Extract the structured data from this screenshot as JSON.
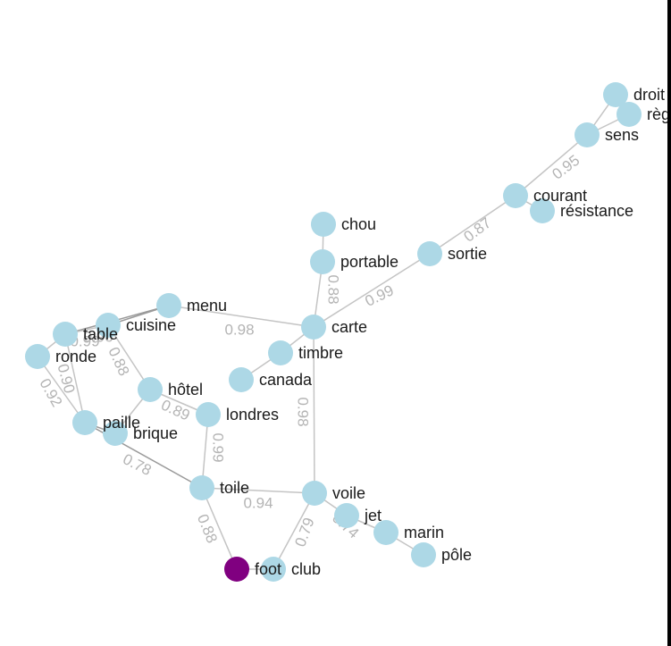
{
  "colors": {
    "node": "#add8e6",
    "selected": "#800080",
    "edge": "#c4c4c4",
    "weight": "#b4b4b4",
    "label": "#1a1a1a"
  },
  "nodes": [
    {
      "id": "droite",
      "label": "droit"
    },
    {
      "id": "regle",
      "label": "règ"
    },
    {
      "id": "sens",
      "label": "sens"
    },
    {
      "id": "courant",
      "label": "courant"
    },
    {
      "id": "resistance",
      "label": "résistance"
    },
    {
      "id": "sortie",
      "label": "sortie"
    },
    {
      "id": "chou",
      "label": "chou"
    },
    {
      "id": "portable",
      "label": "portable"
    },
    {
      "id": "carte",
      "label": "carte"
    },
    {
      "id": "menu",
      "label": "menu"
    },
    {
      "id": "cuisine",
      "label": "cuisine"
    },
    {
      "id": "table",
      "label": "table"
    },
    {
      "id": "ronde",
      "label": "ronde"
    },
    {
      "id": "timbre",
      "label": "timbre"
    },
    {
      "id": "canada",
      "label": "canada"
    },
    {
      "id": "hotel",
      "label": "hôtel"
    },
    {
      "id": "londres",
      "label": "londres"
    },
    {
      "id": "paille",
      "label": "paille"
    },
    {
      "id": "brique",
      "label": "brique"
    },
    {
      "id": "toile",
      "label": "toile"
    },
    {
      "id": "voile",
      "label": "voile"
    },
    {
      "id": "jet",
      "label": "jet"
    },
    {
      "id": "marin",
      "label": "marin"
    },
    {
      "id": "pole",
      "label": "pôle"
    },
    {
      "id": "foot",
      "label": "foot",
      "selected": true
    },
    {
      "id": "club",
      "label": "club"
    }
  ],
  "edges": [
    {
      "from": "droite",
      "to": "regle"
    },
    {
      "from": "droite",
      "to": "sens"
    },
    {
      "from": "regle",
      "to": "sens"
    },
    {
      "from": "sens",
      "to": "courant",
      "weight": "0.95"
    },
    {
      "from": "courant",
      "to": "resistance"
    },
    {
      "from": "courant",
      "to": "sortie",
      "weight": "0.87"
    },
    {
      "from": "sortie",
      "to": "carte",
      "weight": "0.99"
    },
    {
      "from": "chou",
      "to": "portable"
    },
    {
      "from": "portable",
      "to": "carte",
      "weight": "0.88"
    },
    {
      "from": "carte",
      "to": "menu",
      "weight": "0.98"
    },
    {
      "from": "carte",
      "to": "timbre"
    },
    {
      "from": "carte",
      "to": "voile",
      "weight": "0.98"
    },
    {
      "from": "timbre",
      "to": "canada"
    },
    {
      "from": "menu",
      "to": "cuisine"
    },
    {
      "from": "menu",
      "to": "table"
    },
    {
      "from": "cuisine",
      "to": "table",
      "weight": "0.96"
    },
    {
      "from": "table",
      "to": "ronde",
      "weight": "0.99"
    },
    {
      "from": "cuisine",
      "to": "hotel",
      "weight": "0.88"
    },
    {
      "from": "ronde",
      "to": "paille",
      "weight": "0.92"
    },
    {
      "from": "table",
      "to": "paille",
      "weight": "0.90"
    },
    {
      "from": "paille",
      "to": "brique"
    },
    {
      "from": "hotel",
      "to": "londres",
      "weight": "0.89"
    },
    {
      "from": "hotel",
      "to": "brique"
    },
    {
      "from": "londres",
      "to": "toile",
      "weight": "0.99"
    },
    {
      "from": "paille",
      "to": "toile",
      "weight": "0.78"
    },
    {
      "from": "toile",
      "to": "voile",
      "weight": "0.94"
    },
    {
      "from": "toile",
      "to": "foot",
      "weight": "0.88"
    },
    {
      "from": "voile",
      "to": "jet",
      "weight": "0.74"
    },
    {
      "from": "voile",
      "to": "club",
      "weight": "0.79"
    },
    {
      "from": "jet",
      "to": "marin"
    },
    {
      "from": "marin",
      "to": "pole"
    },
    {
      "from": "foot",
      "to": "club"
    }
  ]
}
